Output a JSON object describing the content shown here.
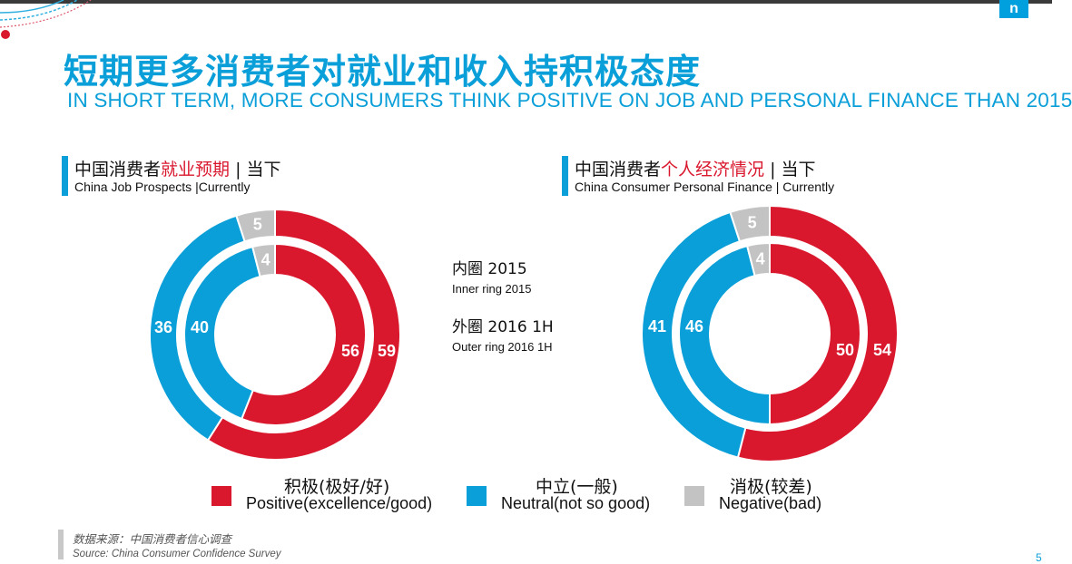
{
  "header": {
    "title_cn": "短期更多消费者对就业和收入持积极态度",
    "title_en": "IN SHORT TERM, MORE CONSUMERS THINK POSITIVE ON JOB AND PERSONAL FINANCE THAN 2015",
    "logo_text": "n"
  },
  "ring_note": {
    "inner_cn": "内圈  2015",
    "inner_en": "Inner ring 2015",
    "outer_cn": "外圈  2016 1H",
    "outer_en": "Outer ring 2016 1H"
  },
  "colors": {
    "positive": "#d9182e",
    "neutral": "#0a9fd8",
    "negative": "#c3c3c3",
    "accent": "#0a9fd8"
  },
  "chart_data": [
    {
      "type": "donut",
      "title_cn_prefix": "中国消费者",
      "title_cn_highlight": "就业预期",
      "title_cn_suffix": " | 当下",
      "title_en": "China Job Prospects |Currently",
      "categories": [
        "Positive(excellence/good)",
        "Neutral(not so good)",
        "Negative(bad)"
      ],
      "series": [
        {
          "name": "2015",
          "ring": "inner",
          "values": [
            56,
            40,
            4
          ]
        },
        {
          "name": "2016 1H",
          "ring": "outer",
          "values": [
            59,
            36,
            5
          ]
        }
      ]
    },
    {
      "type": "donut",
      "title_cn_prefix": "中国消费者",
      "title_cn_highlight": "个人经济情况",
      "title_cn_suffix": " | 当下",
      "title_en": "China Consumer Personal Finance | Currently",
      "categories": [
        "Positive(excellence/good)",
        "Neutral(not so good)",
        "Negative(bad)"
      ],
      "series": [
        {
          "name": "2015",
          "ring": "inner",
          "values": [
            50,
            46,
            4
          ]
        },
        {
          "name": "2016 1H",
          "ring": "outer",
          "values": [
            54,
            41,
            5
          ]
        }
      ]
    }
  ],
  "legend": [
    {
      "cn": "积极(极好/好)",
      "en": "Positive(excellence/good)",
      "color": "#d9182e"
    },
    {
      "cn": "中立(一般)",
      "en": "Neutral(not so good)",
      "color": "#0a9fd8"
    },
    {
      "cn": "消极(较差)",
      "en": "Negative(bad)",
      "color": "#c3c3c3"
    }
  ],
  "source": {
    "cn": "数据来源：中国消费者信心调查",
    "en": "Source: China Consumer Confidence Survey"
  },
  "page_number": "5"
}
